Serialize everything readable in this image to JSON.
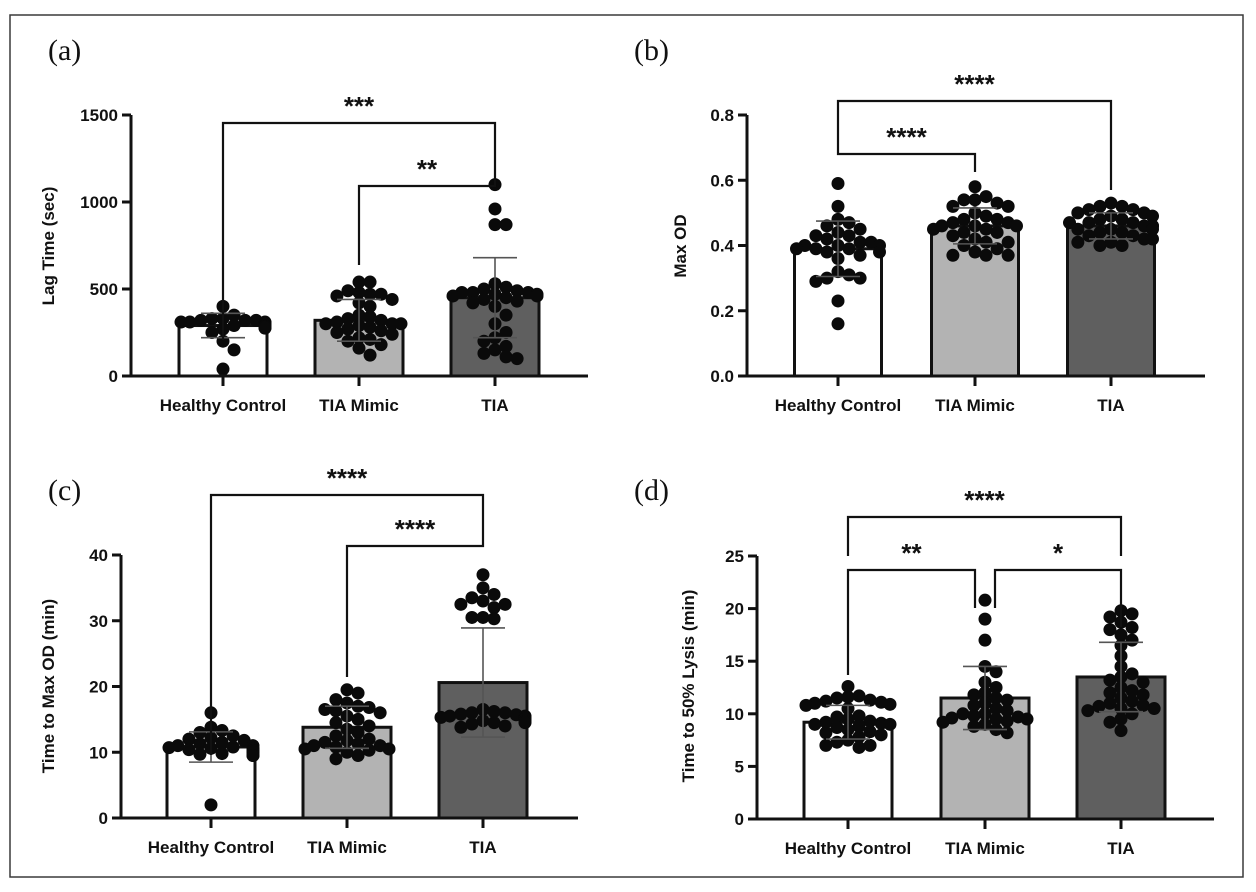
{
  "figure": {
    "frame": true,
    "bar_colors": {
      "Healthy Control": "#ffffff",
      "TIA Mimic": "#b3b3b3",
      "TIA": "#5f5f5f"
    }
  },
  "chart_data": [
    {
      "panel": "(a)",
      "type": "bar",
      "title": "",
      "xlabel": "",
      "ylabel": "Lag Time (sec)",
      "categories": [
        "Healthy Control",
        "TIA Mimic",
        "TIA"
      ],
      "values": [
        290,
        320,
        450
      ],
      "error_sd": [
        70,
        120,
        230
      ],
      "ylim": [
        0,
        1500
      ],
      "yticks": [
        0,
        500,
        1000,
        1500
      ],
      "ytick_labels": [
        "0",
        "500",
        "1000",
        "1500"
      ],
      "points": [
        [
          330,
          320,
          310,
          300,
          295,
          290,
          285,
          280,
          300,
          310,
          320,
          330,
          300,
          290,
          280,
          275,
          270,
          310,
          305,
          295,
          290,
          285,
          400,
          350,
          250,
          200,
          150,
          40,
          300,
          320
        ],
        [
          540,
          540,
          490,
          480,
          470,
          470,
          460,
          440,
          420,
          400,
          350,
          340,
          330,
          320,
          310,
          300,
          300,
          290,
          280,
          270,
          260,
          250,
          240,
          220,
          210,
          200,
          180,
          160,
          120,
          300
        ],
        [
          1100,
          960,
          870,
          870,
          530,
          510,
          500,
          490,
          480,
          480,
          470,
          470,
          460,
          460,
          450,
          440,
          430,
          420,
          400,
          350,
          300,
          250,
          220,
          200,
          170,
          150,
          130,
          110,
          100,
          480
        ]
      ],
      "significance": [
        {
          "from": "Healthy Control",
          "to": "TIA",
          "label": "***",
          "level": 1
        },
        {
          "from": "TIA Mimic",
          "to": "TIA",
          "label": "**",
          "level": 0
        }
      ]
    },
    {
      "panel": "(b)",
      "type": "bar",
      "title": "",
      "xlabel": "",
      "ylabel": "Max OD",
      "categories": [
        "Healthy Control",
        "TIA Mimic",
        "TIA"
      ],
      "values": [
        0.39,
        0.46,
        0.46
      ],
      "error_sd": [
        0.085,
        0.055,
        0.04
      ],
      "ylim": [
        0,
        0.8
      ],
      "yticks": [
        0.0,
        0.2,
        0.4,
        0.6,
        0.8
      ],
      "ytick_labels": [
        "0.0",
        "0.2",
        "0.4",
        "0.6",
        "0.8"
      ],
      "points": [
        [
          0.59,
          0.52,
          0.48,
          0.47,
          0.46,
          0.45,
          0.44,
          0.43,
          0.43,
          0.42,
          0.41,
          0.41,
          0.4,
          0.4,
          0.4,
          0.39,
          0.39,
          0.39,
          0.38,
          0.38,
          0.37,
          0.36,
          0.32,
          0.31,
          0.3,
          0.3,
          0.29,
          0.23,
          0.16
        ],
        [
          0.58,
          0.55,
          0.54,
          0.54,
          0.53,
          0.52,
          0.52,
          0.5,
          0.49,
          0.48,
          0.48,
          0.47,
          0.47,
          0.46,
          0.46,
          0.46,
          0.45,
          0.45,
          0.44,
          0.44,
          0.43,
          0.42,
          0.41,
          0.41,
          0.4,
          0.39,
          0.38,
          0.37,
          0.37,
          0.37
        ],
        [
          0.53,
          0.52,
          0.52,
          0.51,
          0.51,
          0.5,
          0.5,
          0.49,
          0.49,
          0.48,
          0.48,
          0.47,
          0.47,
          0.47,
          0.46,
          0.46,
          0.46,
          0.45,
          0.45,
          0.45,
          0.44,
          0.44,
          0.43,
          0.43,
          0.42,
          0.42,
          0.41,
          0.41,
          0.4,
          0.4
        ]
      ],
      "significance": [
        {
          "from": "Healthy Control",
          "to": "TIA",
          "label": "****",
          "level": 1
        },
        {
          "from": "Healthy Control",
          "to": "TIA Mimic",
          "label": "****",
          "level": 0
        }
      ]
    },
    {
      "panel": "(c)",
      "type": "bar",
      "title": "",
      "xlabel": "",
      "ylabel": "Time to Max OD (min)",
      "categories": [
        "Healthy Control",
        "TIA Mimic",
        "TIA"
      ],
      "values": [
        10.8,
        13.8,
        20.6
      ],
      "error_sd": [
        2.3,
        3.2,
        8.3
      ],
      "ylim": [
        0,
        40
      ],
      "yticks": [
        0,
        10,
        20,
        30,
        40
      ],
      "ytick_labels": [
        "0",
        "10",
        "20",
        "30",
        "40"
      ],
      "points": [
        [
          16,
          13.8,
          13.3,
          13,
          12.5,
          12.2,
          12,
          11.8,
          11.5,
          11.3,
          11,
          11,
          10.8,
          10.7,
          10.6,
          10.5,
          10.5,
          10.4,
          10.3,
          10.2,
          10,
          10,
          9.8,
          9.7,
          9.5,
          9.5,
          2
        ],
        [
          19.5,
          19,
          18,
          17.5,
          17,
          16.8,
          16.5,
          16.3,
          16,
          15.5,
          15,
          14.5,
          14,
          13.5,
          13,
          12.5,
          12,
          11.8,
          11.5,
          11.3,
          11,
          11,
          10.8,
          10.5,
          10.5,
          10.3,
          10,
          9.5,
          9
        ],
        [
          37,
          35,
          34,
          33.5,
          33,
          32.5,
          32.5,
          32,
          30.5,
          30.5,
          30.3,
          16.5,
          16.2,
          16,
          16,
          15.8,
          15.7,
          15.5,
          15.5,
          15.3,
          15.2,
          15,
          15,
          14.8,
          14.7,
          14.5,
          14.5,
          14.3,
          14,
          13.8
        ]
      ],
      "significance": [
        {
          "from": "Healthy Control",
          "to": "TIA",
          "label": "****",
          "level": 1
        },
        {
          "from": "TIA Mimic",
          "to": "TIA",
          "label": "****",
          "level": 0
        }
      ]
    },
    {
      "panel": "(d)",
      "type": "bar",
      "title": "",
      "xlabel": "",
      "ylabel": "Time to 50% Lysis (min)",
      "categories": [
        "Healthy Control",
        "TIA Mimic",
        "TIA"
      ],
      "values": [
        9.2,
        11.5,
        13.5
      ],
      "error_sd": [
        1.6,
        3.0,
        3.3
      ],
      "ylim": [
        0,
        25
      ],
      "yticks": [
        0,
        5,
        10,
        15,
        20,
        25
      ],
      "ytick_labels": [
        "0",
        "5",
        "10",
        "15",
        "20",
        "25"
      ],
      "points": [
        [
          12.6,
          11.7,
          11.6,
          11.5,
          11.3,
          11.2,
          11.1,
          11,
          10.9,
          10.8,
          10.5,
          9.8,
          9.7,
          9.5,
          9.3,
          9.2,
          9.1,
          9,
          9,
          8.8,
          8.7,
          8.5,
          8.3,
          8.2,
          8,
          7.8,
          7.5,
          7.3,
          7,
          6.8,
          7
        ],
        [
          20.8,
          19,
          17,
          14.5,
          14,
          13,
          12.5,
          12,
          11.8,
          11.5,
          11.3,
          11,
          10.8,
          10.5,
          10.3,
          10,
          10,
          9.8,
          9.7,
          9.6,
          9.5,
          9.5,
          9.3,
          9.2,
          9,
          8.8,
          8.5,
          8.2
        ],
        [
          19.8,
          19.5,
          19.2,
          18.7,
          18.2,
          18,
          17.5,
          17,
          16.5,
          15.5,
          14.5,
          13.8,
          13.5,
          13.2,
          13,
          12.5,
          12.2,
          12,
          11.8,
          11.5,
          11.2,
          11,
          10.8,
          10.7,
          10.5,
          10.5,
          10.3,
          10,
          9.5,
          9.2,
          8.4
        ]
      ],
      "significance": [
        {
          "from": "Healthy Control",
          "to": "TIA",
          "label": "****",
          "level": 1
        },
        {
          "from": "Healthy Control",
          "to": "TIA Mimic",
          "label": "**",
          "level": 0
        },
        {
          "from": "TIA Mimic",
          "to": "TIA",
          "label": "*",
          "level": 0
        }
      ]
    }
  ]
}
